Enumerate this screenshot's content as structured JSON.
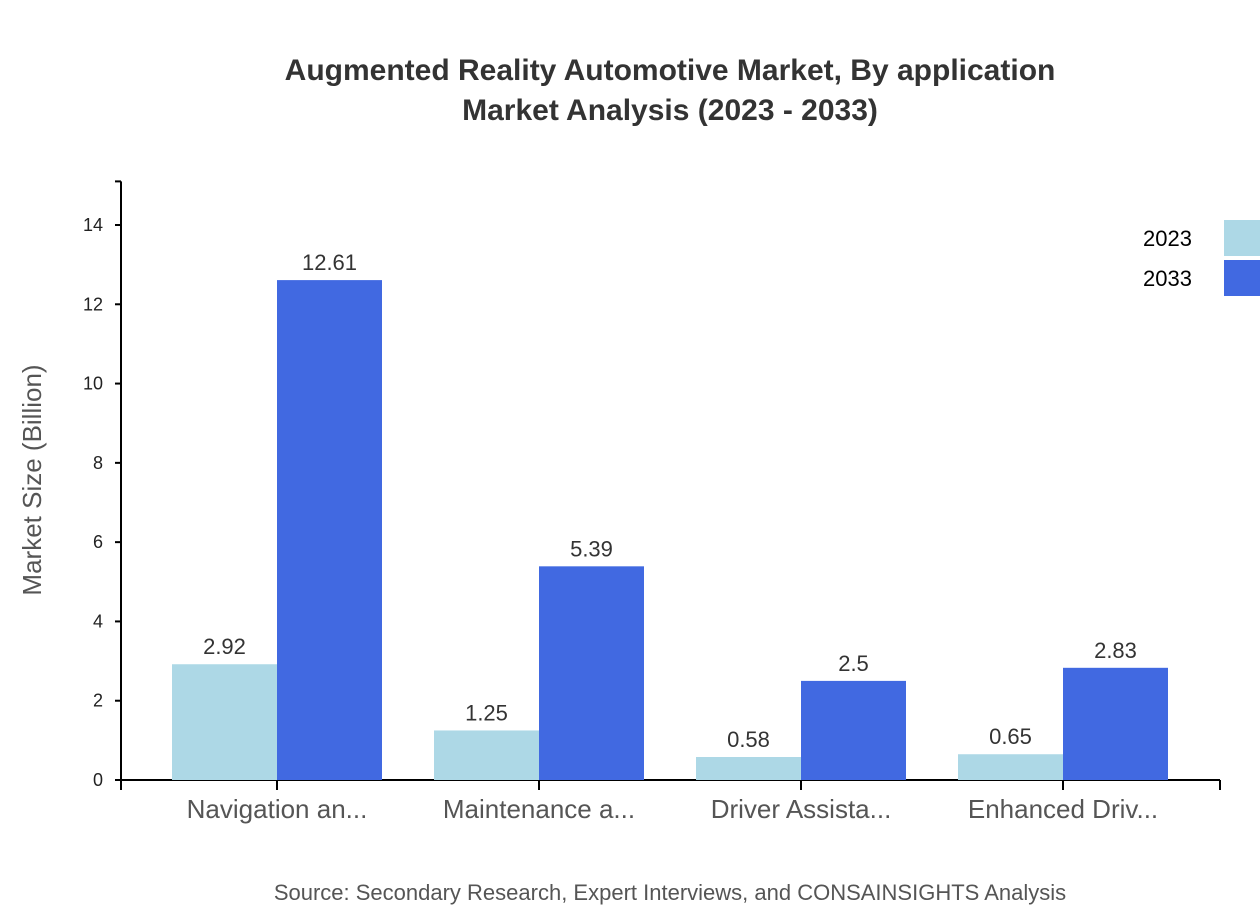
{
  "chart_data": {
    "type": "bar",
    "title": "Augmented Reality Automotive Market, By application",
    "subtitle": "Market Analysis (2023 - 2033)",
    "xlabel": "",
    "ylabel": "Market Size (Billion)",
    "ylim": [
      0,
      15.1
    ],
    "yticks": [
      0,
      2,
      4,
      6,
      8,
      10,
      12,
      14
    ],
    "categories": [
      "Navigation an...",
      "Maintenance a...",
      "Driver Assista...",
      "Enhanced Driv..."
    ],
    "series": [
      {
        "name": "2023",
        "color": "#add8e6",
        "values": [
          2.92,
          1.25,
          0.58,
          0.65
        ]
      },
      {
        "name": "2033",
        "color": "#4169e1",
        "values": [
          12.61,
          5.39,
          2.5,
          2.83
        ]
      }
    ],
    "grid": false,
    "legend": "top-right",
    "source": "Source: Secondary Research, Expert Interviews, and CONSAINSIGHTS Analysis"
  }
}
